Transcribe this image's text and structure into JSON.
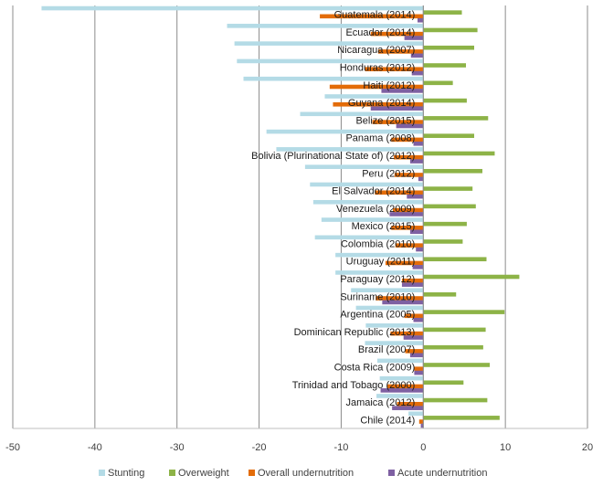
{
  "chart_data": {
    "type": "bar",
    "orientation": "horizontal",
    "title": "",
    "xlabel": "",
    "ylabel": "",
    "xlim": [
      -50,
      20
    ],
    "xticks": [
      -50,
      -40,
      -30,
      -20,
      -10,
      0,
      10,
      20
    ],
    "grid": true,
    "legend_position": "bottom",
    "categories": [
      "Guatemala (2014)",
      "Ecuador (2014)",
      "Nicaragua (2007)",
      "Honduras (2012)",
      "Haiti (2012)",
      "Guyana (2014)",
      "Belize (2015)",
      "Panama (2008)",
      "Bolivia (Plurinational State of) (2012)",
      "Peru (2012)",
      "El Salvador (2014)",
      "Venezuela (2009)",
      "Mexico (2015)",
      "Colombia (2010)",
      "Uruguay (2011)",
      "Paraguay (2012)",
      "Suriname (2010)",
      "Argentina (2005)",
      "Dominican Republic (2013)",
      "Brazil (2007)",
      "Costa Rica (2009)",
      "Trinidad and Tobago (2000)",
      "Jamaica (2012)",
      "Chile (2014)"
    ],
    "series": [
      {
        "name": "Stunting",
        "color": "#b4dbe6",
        "values": [
          -46.5,
          -23.9,
          -23,
          -22.7,
          -21.9,
          -12,
          -15,
          -19.1,
          -17.9,
          -14.4,
          -13.8,
          -13.4,
          -12.4,
          -13.2,
          -10.7,
          -10.7,
          -8.8,
          -8.2,
          -7,
          -7.1,
          -5.6,
          -5.3,
          -5.7,
          -1.8
        ]
      },
      {
        "name": "Overweight",
        "color": "#8db347",
        "values": [
          4.7,
          6.6,
          6.2,
          5.2,
          3.6,
          5.3,
          7.9,
          6.2,
          8.7,
          7.2,
          6,
          6.4,
          5.3,
          4.8,
          7.7,
          11.7,
          4,
          9.9,
          7.6,
          7.3,
          8.1,
          4.9,
          7.8,
          9.3
        ]
      },
      {
        "name": "Overall undernutrition",
        "color": "#e36c09",
        "values": [
          -12.6,
          -6.4,
          -5.5,
          -7.1,
          -11.4,
          -11,
          -6.2,
          -3.9,
          -3.6,
          -3.5,
          -5.9,
          -3.7,
          -3.9,
          -3.4,
          -4.6,
          -2.6,
          -5.8,
          -2.3,
          -4,
          -2.2,
          -1.1,
          -4.4,
          -3.2,
          -0.5
        ]
      },
      {
        "name": "Acute undernutrition",
        "color": "#7e60a2",
        "values": [
          -0.7,
          -2.3,
          -1.5,
          -1.4,
          -5.1,
          -6.4,
          -3.3,
          -1.2,
          -1.6,
          -0.6,
          -2,
          -4.1,
          -1.6,
          -0.9,
          -1.3,
          -2.6,
          -5,
          -1.2,
          -2.4,
          -1.6,
          -1.1,
          -5.2,
          -3.8,
          -0.3
        ]
      }
    ]
  }
}
